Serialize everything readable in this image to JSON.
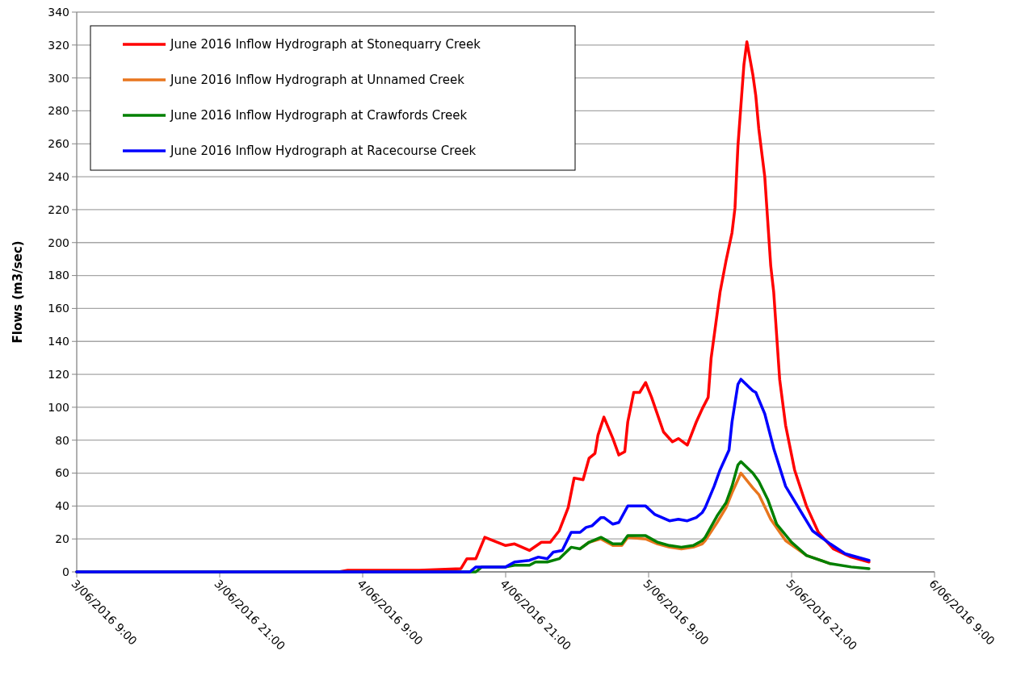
{
  "chart_data": {
    "type": "line",
    "ylabel": "Flows (m3/sec)",
    "xlim": [
      "2016-06-03T09:00",
      "2016-06-06T09:00"
    ],
    "xticks": [
      {
        "value": "2016-06-03T09:00",
        "label": "3/06/2016 9:00"
      },
      {
        "value": "2016-06-03T21:00",
        "label": "3/06/2016 21:00"
      },
      {
        "value": "2016-06-04T09:00",
        "label": "4/06/2016 9:00"
      },
      {
        "value": "2016-06-04T21:00",
        "label": "4/06/2016 21:00"
      },
      {
        "value": "2016-06-05T09:00",
        "label": "5/06/2016 9:00"
      },
      {
        "value": "2016-06-05T21:00",
        "label": "5/06/2016 21:00"
      },
      {
        "value": "2016-06-06T09:00",
        "label": "6/06/2016 9:00"
      }
    ],
    "ylim": [
      0,
      340
    ],
    "yticks": [
      0,
      20,
      40,
      60,
      80,
      100,
      120,
      140,
      160,
      180,
      200,
      220,
      240,
      260,
      280,
      300,
      320,
      340
    ],
    "grid": "y",
    "legend": "top left",
    "marker": "none",
    "line_style": "solid",
    "series": [
      {
        "name": "June 2016 Inflow Hydrograph at Stonequarry Creek",
        "color": "#ff0000",
        "x": [
          "2016-06-03T09:00",
          "2016-06-04T07:00",
          "2016-06-04T07:45",
          "2016-06-04T13:45",
          "2016-06-04T17:15",
          "2016-06-04T17:45",
          "2016-06-04T18:30",
          "2016-06-04T19:15",
          "2016-06-04T21:00",
          "2016-06-04T21:45",
          "2016-06-04T23:00",
          "2016-06-05T00:00",
          "2016-06-05T00:45",
          "2016-06-05T01:30",
          "2016-06-05T02:15",
          "2016-06-05T02:45",
          "2016-06-05T03:30",
          "2016-06-05T04:00",
          "2016-06-05T04:30",
          "2016-06-05T04:45",
          "2016-06-05T05:15",
          "2016-06-05T06:00",
          "2016-06-05T06:30",
          "2016-06-05T07:00",
          "2016-06-05T07:15",
          "2016-06-05T07:45",
          "2016-06-05T08:15",
          "2016-06-05T08:45",
          "2016-06-05T09:15",
          "2016-06-05T10:15",
          "2016-06-05T11:00",
          "2016-06-05T11:30",
          "2016-06-05T12:15",
          "2016-06-05T13:00",
          "2016-06-05T13:30",
          "2016-06-05T14:00",
          "2016-06-05T14:15",
          "2016-06-05T15:00",
          "2016-06-05T15:30",
          "2016-06-05T16:00",
          "2016-06-05T16:15",
          "2016-06-05T16:30",
          "2016-06-05T17:00",
          "2016-06-05T17:15",
          "2016-06-05T17:45",
          "2016-06-05T18:00",
          "2016-06-05T18:15",
          "2016-06-05T18:45",
          "2016-06-05T19:15",
          "2016-06-05T19:30",
          "2016-06-05T20:00",
          "2016-06-05T20:30",
          "2016-06-05T21:15",
          "2016-06-05T22:15",
          "2016-06-05T23:15",
          "2016-06-06T00:30",
          "2016-06-06T02:00",
          "2016-06-06T03:30"
        ],
        "values": [
          0,
          0,
          1,
          1,
          2,
          8,
          8,
          21,
          16,
          17,
          13,
          18,
          18,
          25,
          39,
          57,
          56,
          69,
          72,
          83,
          94,
          81,
          71,
          73,
          91,
          109,
          109,
          115,
          106,
          85,
          79,
          81,
          77,
          91,
          99,
          106,
          130,
          170,
          189,
          206,
          221,
          259,
          308,
          322,
          302,
          289,
          269,
          240,
          186,
          170,
          117,
          89,
          62,
          40,
          24,
          14,
          9,
          6
        ]
      },
      {
        "name": "June 2016 Inflow Hydrograph at Unnamed Creek",
        "color": "#e8761e",
        "x": [
          "2016-06-05T03:15",
          "2016-06-05T04:00",
          "2016-06-05T05:00",
          "2016-06-05T06:00",
          "2016-06-05T06:45",
          "2016-06-05T07:15",
          "2016-06-05T08:45",
          "2016-06-05T09:45",
          "2016-06-05T10:45",
          "2016-06-05T11:45",
          "2016-06-05T12:45",
          "2016-06-05T13:30",
          "2016-06-05T13:45",
          "2016-06-05T14:45",
          "2016-06-05T15:30",
          "2016-06-05T16:00",
          "2016-06-05T16:45",
          "2016-06-05T17:45",
          "2016-06-05T18:15",
          "2016-06-05T19:15",
          "2016-06-05T20:30",
          "2016-06-05T22:15",
          "2016-06-06T00:15"
        ],
        "values": [
          14,
          18,
          20,
          16,
          16,
          21,
          20,
          17,
          15,
          14,
          15,
          17,
          19,
          30,
          39,
          48,
          60,
          51,
          47,
          32,
          19,
          10,
          5
        ]
      },
      {
        "name": "June 2016 Inflow Hydrograph at Crawfords Creek",
        "color": "#008000",
        "x": [
          "2016-06-03T09:00",
          "2016-06-04T18:30",
          "2016-06-04T19:00",
          "2016-06-04T21:00",
          "2016-06-04T21:45",
          "2016-06-04T23:00",
          "2016-06-04T23:30",
          "2016-06-05T00:30",
          "2016-06-05T01:30",
          "2016-06-05T02:30",
          "2016-06-05T03:15",
          "2016-06-05T04:00",
          "2016-06-05T05:00",
          "2016-06-05T06:00",
          "2016-06-05T06:45",
          "2016-06-05T07:15",
          "2016-06-05T08:45",
          "2016-06-05T09:45",
          "2016-06-05T10:45",
          "2016-06-05T11:45",
          "2016-06-05T12:45",
          "2016-06-05T13:30",
          "2016-06-05T13:45",
          "2016-06-05T14:45",
          "2016-06-05T15:30",
          "2016-06-05T16:00",
          "2016-06-05T16:30",
          "2016-06-05T16:45",
          "2016-06-05T17:45",
          "2016-06-05T18:15",
          "2016-06-05T19:00",
          "2016-06-05T19:45",
          "2016-06-05T21:00",
          "2016-06-05T22:15",
          "2016-06-06T00:15",
          "2016-06-06T02:00",
          "2016-06-06T03:30"
        ],
        "values": [
          0,
          0,
          3,
          3,
          4,
          4,
          6,
          6,
          8,
          15,
          14,
          18,
          21,
          17,
          17,
          22,
          22,
          18,
          16,
          15,
          16,
          19,
          21,
          34,
          42,
          52,
          65,
          67,
          60,
          55,
          44,
          29,
          18,
          10,
          5,
          3,
          2
        ]
      },
      {
        "name": "June 2016 Inflow Hydrograph at Racecourse Creek",
        "color": "#0000ff",
        "x": [
          "2016-06-03T09:00",
          "2016-06-04T18:00",
          "2016-06-04T18:30",
          "2016-06-04T21:00",
          "2016-06-04T21:45",
          "2016-06-04T23:00",
          "2016-06-04T23:45",
          "2016-06-05T00:30",
          "2016-06-05T01:00",
          "2016-06-05T01:45",
          "2016-06-05T02:30",
          "2016-06-05T03:15",
          "2016-06-05T03:45",
          "2016-06-05T04:15",
          "2016-06-05T05:00",
          "2016-06-05T05:15",
          "2016-06-05T06:00",
          "2016-06-05T06:30",
          "2016-06-05T07:15",
          "2016-06-05T08:45",
          "2016-06-05T09:30",
          "2016-06-05T10:45",
          "2016-06-05T11:30",
          "2016-06-05T12:15",
          "2016-06-05T13:00",
          "2016-06-05T13:30",
          "2016-06-05T13:45",
          "2016-06-05T14:30",
          "2016-06-05T15:00",
          "2016-06-05T15:45",
          "2016-06-05T16:00",
          "2016-06-05T16:30",
          "2016-06-05T16:45",
          "2016-06-05T17:45",
          "2016-06-05T18:00",
          "2016-06-05T18:45",
          "2016-06-05T19:30",
          "2016-06-05T20:30",
          "2016-06-05T21:45",
          "2016-06-05T22:45",
          "2016-06-06T00:15",
          "2016-06-06T01:30",
          "2016-06-06T03:30"
        ],
        "values": [
          0,
          0,
          3,
          3,
          6,
          7,
          9,
          8,
          12,
          13,
          24,
          24,
          27,
          28,
          33,
          33,
          29,
          30,
          40,
          40,
          35,
          31,
          32,
          31,
          33,
          36,
          39,
          52,
          62,
          74,
          91,
          114,
          117,
          110,
          109,
          96,
          75,
          52,
          37,
          25,
          17,
          11,
          7
        ]
      }
    ]
  }
}
